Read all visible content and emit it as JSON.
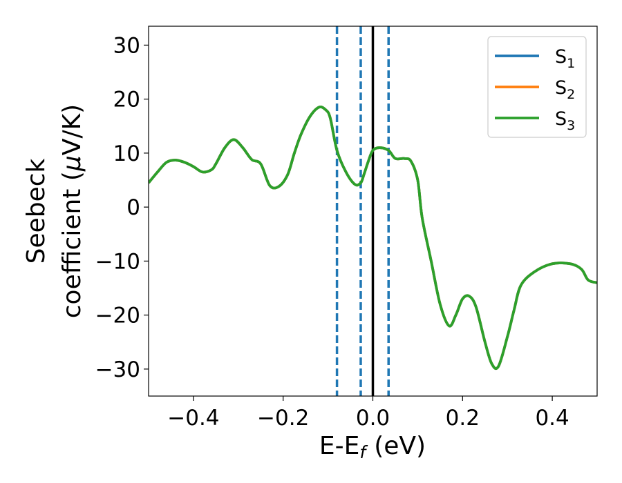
{
  "chart_data": {
    "type": "line",
    "xlabel": "E-E",
    "xlabel_sub": "f",
    "xlabel_unit": "(eV)",
    "ylabel_line1": "Seebeck",
    "ylabel_line2": "coefficient  (",
    "ylabel_mu": "μ",
    "ylabel_unit": "V/K)",
    "xlim": [
      -0.5,
      0.5
    ],
    "ylim": [
      -35,
      33.5
    ],
    "xticks": [
      -0.4,
      -0.2,
      0.0,
      0.2,
      0.4
    ],
    "xtick_labels": [
      "−0.4",
      "−0.2",
      "0.0",
      "0.2",
      "0.4"
    ],
    "yticks": [
      -30,
      -20,
      -10,
      0,
      10,
      20,
      30
    ],
    "ytick_labels": [
      "−30",
      "−20",
      "−10",
      "0",
      "10",
      "20",
      "30"
    ],
    "grid": false,
    "legend_position": "top-right",
    "vertical_lines": [
      {
        "x": 0.0,
        "style": "solid",
        "color": "#000000"
      },
      {
        "x": -0.08,
        "style": "dashed",
        "color": "#1f77b4"
      },
      {
        "x": -0.027,
        "style": "dashed",
        "color": "#1f77b4"
      },
      {
        "x": 0.035,
        "style": "dashed",
        "color": "#1f77b4"
      }
    ],
    "x": [
      -0.5,
      -0.48,
      -0.46,
      -0.44,
      -0.42,
      -0.4,
      -0.38,
      -0.36,
      -0.35,
      -0.33,
      -0.31,
      -0.29,
      -0.27,
      -0.25,
      -0.23,
      -0.21,
      -0.19,
      -0.175,
      -0.16,
      -0.14,
      -0.12,
      -0.105,
      -0.095,
      -0.08,
      -0.06,
      -0.04,
      -0.027,
      -0.02,
      -0.01,
      0.0,
      0.015,
      0.035,
      0.05,
      0.07,
      0.085,
      0.1,
      0.11,
      0.13,
      0.15,
      0.17,
      0.185,
      0.2,
      0.215,
      0.23,
      0.25,
      0.265,
      0.28,
      0.3,
      0.315,
      0.33,
      0.36,
      0.4,
      0.44,
      0.465,
      0.48,
      0.5
    ],
    "series": [
      {
        "name": "S",
        "sub": "1",
        "color": "#1f77b4",
        "values": [
          4.5,
          6.5,
          8.3,
          8.7,
          8.3,
          7.5,
          6.5,
          6.9,
          8.0,
          11.0,
          12.5,
          11.0,
          8.8,
          8.0,
          4.0,
          3.8,
          6.0,
          10.0,
          13.5,
          16.8,
          18.5,
          18.0,
          16.5,
          10.5,
          6.5,
          4.2,
          4.5,
          6.0,
          8.5,
          10.5,
          11.0,
          10.5,
          9.0,
          9.0,
          8.5,
          5.0,
          -2.0,
          -10.0,
          -18.0,
          -22.0,
          -20.0,
          -17.0,
          -16.5,
          -18.5,
          -25.0,
          -29.0,
          -29.5,
          -24.0,
          -19.0,
          -14.5,
          -12.0,
          -10.5,
          -10.5,
          -11.5,
          -13.5,
          -14.0
        ]
      },
      {
        "name": "S",
        "sub": "2",
        "color": "#ff7f0e",
        "values": [
          4.5,
          6.5,
          8.3,
          8.7,
          8.3,
          7.5,
          6.5,
          6.9,
          8.0,
          11.0,
          12.5,
          11.0,
          8.8,
          8.0,
          4.0,
          3.8,
          6.0,
          10.0,
          13.5,
          16.8,
          18.5,
          18.0,
          16.5,
          10.5,
          6.5,
          4.2,
          4.5,
          6.0,
          8.5,
          10.5,
          11.0,
          10.5,
          9.0,
          9.0,
          8.5,
          5.0,
          -2.0,
          -10.0,
          -18.0,
          -22.0,
          -20.0,
          -17.0,
          -16.5,
          -18.5,
          -25.0,
          -29.0,
          -29.5,
          -24.0,
          -19.0,
          -14.5,
          -12.0,
          -10.5,
          -10.5,
          -11.5,
          -13.5,
          -14.0
        ]
      },
      {
        "name": "S",
        "sub": "3",
        "color": "#2ca02c",
        "values": [
          4.5,
          6.5,
          8.3,
          8.7,
          8.3,
          7.5,
          6.5,
          6.9,
          8.0,
          11.0,
          12.5,
          11.0,
          8.8,
          8.0,
          4.0,
          3.8,
          6.0,
          10.0,
          13.5,
          16.8,
          18.5,
          18.0,
          16.5,
          10.5,
          6.5,
          4.2,
          4.5,
          6.0,
          8.5,
          10.5,
          11.0,
          10.5,
          9.0,
          9.0,
          8.5,
          5.0,
          -2.0,
          -10.0,
          -18.0,
          -22.0,
          -20.0,
          -17.0,
          -16.5,
          -18.5,
          -25.0,
          -29.0,
          -29.5,
          -24.0,
          -19.0,
          -14.5,
          -12.0,
          -10.5,
          -10.5,
          -11.5,
          -13.5,
          -14.0
        ]
      }
    ]
  }
}
